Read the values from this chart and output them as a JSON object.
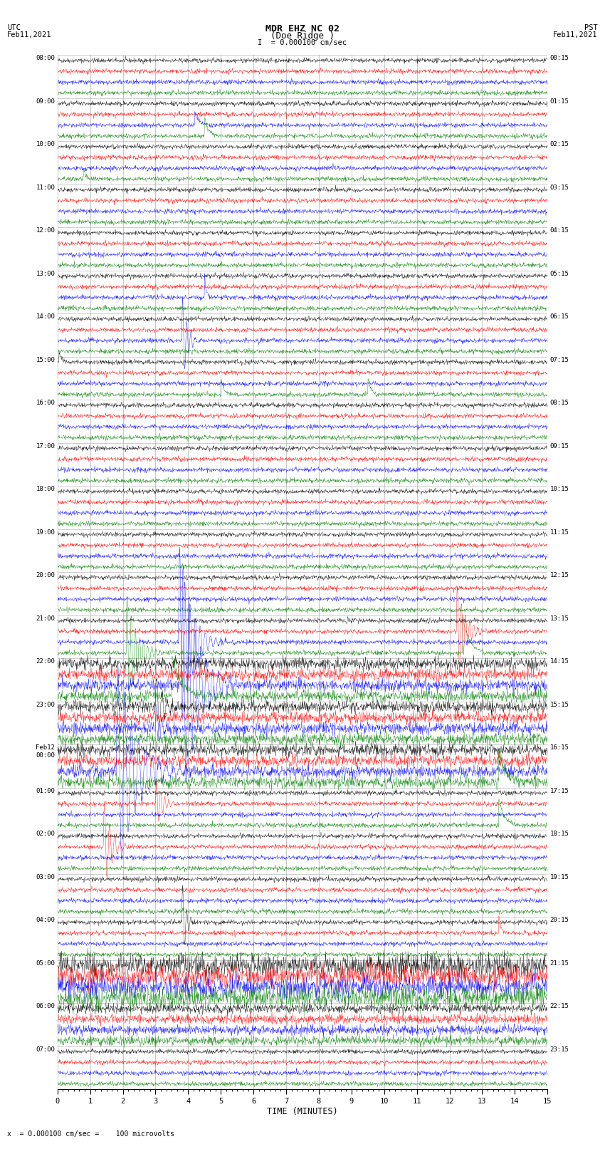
{
  "title_line1": "MDR EHZ NC 02",
  "title_line2": "(Doe Ridge )",
  "scale_text": "= 0.000100 cm/sec",
  "left_label_1": "UTC",
  "left_label_2": "Feb11,2021",
  "right_label_1": "PST",
  "right_label_2": "Feb11,2021",
  "bottom_label": "x  = 0.000100 cm/sec =    100 microvolts",
  "xlabel": "TIME (MINUTES)",
  "utc_hour_labels": [
    "08:00",
    "09:00",
    "10:00",
    "11:00",
    "12:00",
    "13:00",
    "14:00",
    "15:00",
    "16:00",
    "17:00",
    "18:00",
    "19:00",
    "20:00",
    "21:00",
    "22:00",
    "23:00",
    "Feb12\n00:00",
    "01:00",
    "02:00",
    "03:00",
    "04:00",
    "05:00",
    "06:00",
    "07:00"
  ],
  "pst_hour_labels": [
    "00:15",
    "01:15",
    "02:15",
    "03:15",
    "04:15",
    "05:15",
    "06:15",
    "07:15",
    "08:15",
    "09:15",
    "10:15",
    "11:15",
    "12:15",
    "13:15",
    "14:15",
    "15:15",
    "16:15",
    "17:15",
    "18:15",
    "19:15",
    "20:15",
    "21:15",
    "22:15",
    "23:15"
  ],
  "n_hour_blocks": 24,
  "traces_per_hour": 4,
  "row_colors": [
    "black",
    "red",
    "blue",
    "green"
  ],
  "bg_color": "white",
  "grid_color": "#aaaaaa",
  "text_color": "black",
  "minutes": 15,
  "sps": 100,
  "noise_amp": 0.022,
  "fig_width": 8.5,
  "fig_height": 16.13,
  "font_family": "monospace"
}
